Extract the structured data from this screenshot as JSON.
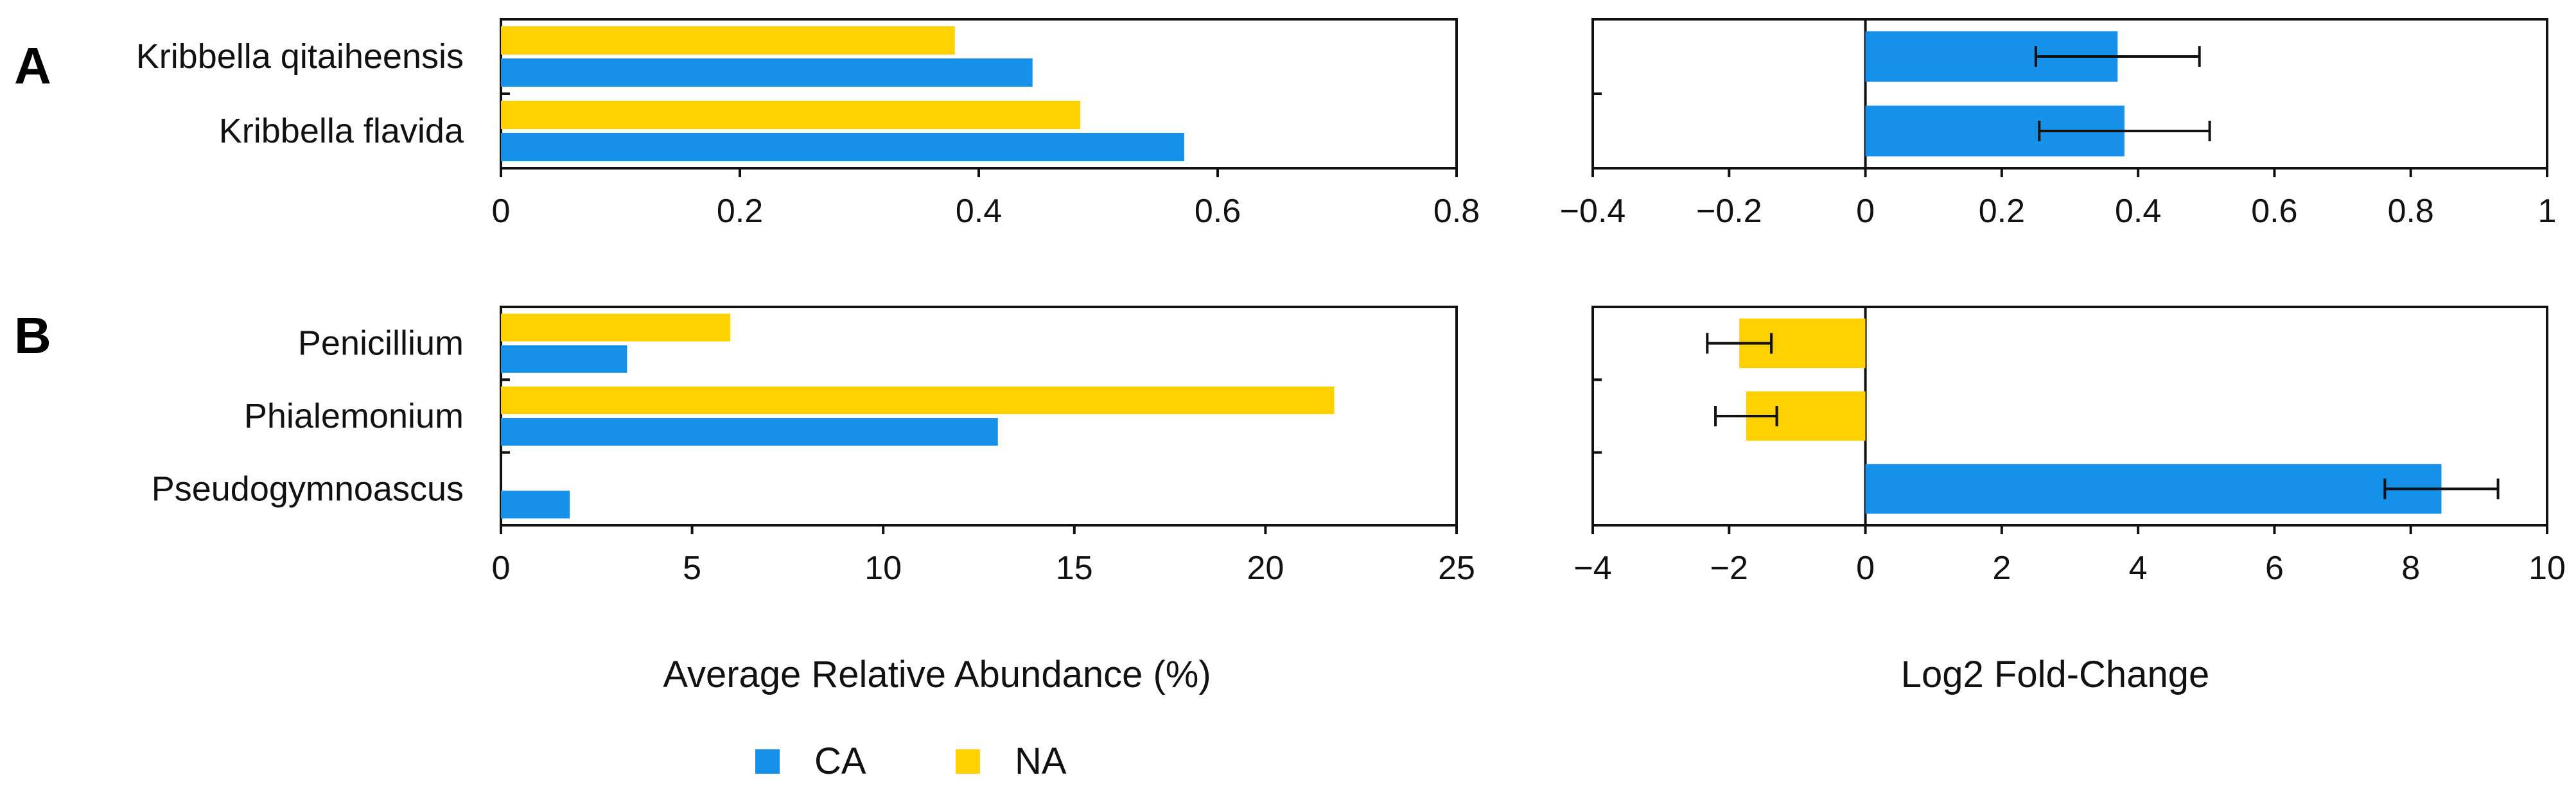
{
  "colors": {
    "CA": "#1591EA",
    "NA": "#FFD100",
    "axis": "#111111"
  },
  "panel_letters": [
    "A",
    "B"
  ],
  "legend": [
    {
      "label": "CA",
      "color": "#1591EA"
    },
    {
      "label": "NA",
      "color": "#FFD100"
    }
  ],
  "x_titles": {
    "abundance": "Average Relative Abundance (%)",
    "foldchange": "Log2 Fold-Change"
  },
  "chart_data": [
    {
      "id": "A-abundance",
      "type": "bar",
      "orientation": "horizontal",
      "panel": "A",
      "categories": [
        "Kribbella qitaiheensis",
        "Kribbella flavida"
      ],
      "series": [
        {
          "name": "NA",
          "values": [
            0.38,
            0.485
          ]
        },
        {
          "name": "CA",
          "values": [
            0.445,
            0.572
          ]
        }
      ],
      "xlim": [
        0,
        0.8
      ],
      "xticks": [
        0,
        0.2,
        0.4,
        0.6,
        0.8
      ],
      "xtick_labels": [
        "0",
        "0.2",
        "0.4",
        "0.6",
        "0.8"
      ],
      "xlabel": "Average Relative Abundance (%)"
    },
    {
      "id": "A-foldchange",
      "type": "bar",
      "orientation": "horizontal",
      "panel": "A",
      "categories": [
        "Kribbella qitaiheensis",
        "Kribbella flavida"
      ],
      "values": [
        0.37,
        0.38
      ],
      "errors": [
        0.12,
        0.125
      ],
      "bar_colors": [
        "CA",
        "CA"
      ],
      "xlim": [
        -0.4,
        1
      ],
      "xticks": [
        -0.4,
        -0.2,
        0,
        0.2,
        0.4,
        0.6,
        0.8,
        1
      ],
      "xtick_labels": [
        "−0.4",
        "−0.2",
        "0",
        "0.2",
        "0.4",
        "0.6",
        "0.8",
        "1"
      ],
      "xlabel": "Log2 Fold-Change"
    },
    {
      "id": "B-abundance",
      "type": "bar",
      "orientation": "horizontal",
      "panel": "B",
      "categories": [
        "Penicillium",
        "Phialemonium",
        "Pseudogymnoascus"
      ],
      "series": [
        {
          "name": "NA",
          "values": [
            6.0,
            21.8,
            0
          ]
        },
        {
          "name": "CA",
          "values": [
            3.3,
            13.0,
            1.8
          ]
        }
      ],
      "xlim": [
        0,
        25
      ],
      "xticks": [
        0,
        5,
        10,
        15,
        20,
        25
      ],
      "xtick_labels": [
        "0",
        "5",
        "10",
        "15",
        "20",
        "25"
      ],
      "xlabel": "Average Relative Abundance (%)"
    },
    {
      "id": "B-foldchange",
      "type": "bar",
      "orientation": "horizontal",
      "panel": "B",
      "categories": [
        "Penicillium",
        "Phialemonium",
        "Pseudogymnoascus"
      ],
      "values": [
        -1.85,
        -1.75,
        8.45
      ],
      "errors": [
        0.47,
        0.45,
        0.83
      ],
      "bar_colors": [
        "NA",
        "NA",
        "CA"
      ],
      "xlim": [
        -4,
        10
      ],
      "xticks": [
        -4,
        -2,
        0,
        2,
        4,
        6,
        8,
        10
      ],
      "xtick_labels": [
        "−4",
        "−2",
        "0",
        "2",
        "4",
        "6",
        "8",
        "10"
      ],
      "xlabel": "Log2 Fold-Change"
    }
  ]
}
